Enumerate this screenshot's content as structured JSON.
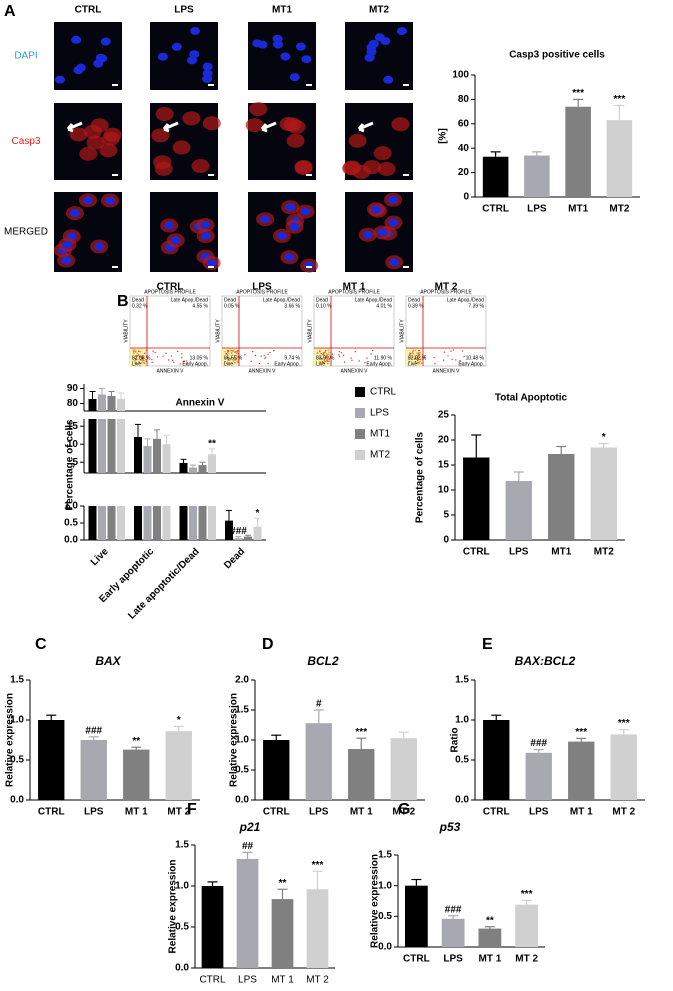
{
  "panels": [
    "A",
    "B",
    "C",
    "D",
    "E",
    "F",
    "G"
  ],
  "microscopy": {
    "columns": [
      "CTRL",
      "LPS",
      "MT1",
      "MT2"
    ],
    "rows": [
      "DAPI",
      "Casp3",
      "MERGED"
    ]
  },
  "flow_plots": [
    {
      "title": "CTRL",
      "subtitle": "APOPTOSIS PROFILE",
      "xlabel": "ANNEXIN V",
      "ylabel": "VIABILITY",
      "labels": [
        [
          "Dead",
          "0.32 %"
        ],
        [
          "Late Apop./Dead",
          "4.55 %"
        ],
        [
          "Live",
          "82.08 %"
        ],
        [
          "Early Apop.",
          "13.05 %"
        ]
      ]
    },
    {
      "title": "LPS",
      "subtitle": "APOPTOSIS PROFILE",
      "xlabel": "ANNEXIN V",
      "ylabel": "VIABILITY",
      "labels": [
        [
          "Dead",
          "0.05 %"
        ],
        [
          "Late Apop./Dead",
          "3.66 %"
        ],
        [
          "Live",
          "86.55 %"
        ],
        [
          "Early Apop.",
          "9.74 %"
        ]
      ]
    },
    {
      "title": "MT 1",
      "subtitle": "APOPTOSIS PROFILE",
      "xlabel": "ANNEXIN V",
      "ylabel": "VIABILITY",
      "labels": [
        [
          "Dead",
          "0.10 %"
        ],
        [
          "Late Apop./Dead",
          "4.01 %"
        ],
        [
          "Live",
          "83.99 %"
        ],
        [
          "Early Apop.",
          "11.90 %"
        ]
      ]
    },
    {
      "title": "MT 2",
      "subtitle": "APOPTOSIS PROFILE",
      "xlabel": "ANNEXIN V",
      "ylabel": "VIABILITY",
      "labels": [
        [
          "Dead",
          "0.39 %"
        ],
        [
          "Late Apop./Dead",
          "7.39 %"
        ],
        [
          "Live",
          "82.02 %"
        ],
        [
          "Early Apop.",
          "10.48 %"
        ]
      ]
    }
  ],
  "chart_data": [
    {
      "type": "bar",
      "title": "Casp3 positive cells",
      "ylabel": "[%]",
      "categories": [
        "CTRL",
        "LPS",
        "MT1",
        "MT2"
      ],
      "values": [
        33,
        34,
        74,
        63
      ],
      "errors": [
        4,
        3,
        6,
        12
      ],
      "annotations": [
        null,
        null,
        "***",
        "***"
      ],
      "colors": [
        "#000000",
        "#a8a8b0",
        "#808080",
        "#d0d0d0"
      ],
      "ylim": [
        0,
        100
      ],
      "yticks": [
        0,
        20,
        40,
        60,
        80,
        100
      ]
    },
    {
      "type": "grouped-bar-broken",
      "title": "Annexin V",
      "ylabel": "Percentage of cells",
      "categories": [
        "Live",
        "Early apoptotic",
        "Late apoptotic/Dead",
        "Dead"
      ],
      "series": [
        {
          "name": "CTRL",
          "color": "#000000",
          "values": [
            83,
            12,
            4.8,
            0.57
          ],
          "errors": [
            5,
            3.5,
            1,
            0.3
          ]
        },
        {
          "name": "LPS",
          "color": "#a8a8b0",
          "values": [
            86,
            9.5,
            3.5,
            0.05
          ],
          "errors": [
            4,
            2,
            0.7,
            0.05
          ],
          "annotations": [
            null,
            null,
            null,
            "###"
          ]
        },
        {
          "name": "MT1",
          "color": "#808080",
          "values": [
            85,
            11.5,
            4.2,
            0.1
          ],
          "errors": [
            3,
            2.5,
            0.8,
            0.04
          ]
        },
        {
          "name": "MT2",
          "color": "#d0d0d0",
          "values": [
            83,
            10,
            7.2,
            0.39
          ],
          "errors": [
            4,
            2.5,
            1.5,
            0.25
          ],
          "annotations": [
            null,
            null,
            "**",
            "*"
          ]
        }
      ],
      "segments": [
        {
          "ylim": [
            0,
            1
          ],
          "yticks": [
            {
              "value": 0,
              "label": "0.0"
            },
            0.5,
            {
              "value": 1,
              "label": "1.0"
            }
          ]
        },
        {
          "ylim": [
            2,
            17
          ],
          "yticks": [
            5,
            10,
            15
          ]
        },
        {
          "ylim": [
            75,
            93
          ],
          "yticks": [
            80,
            90
          ]
        }
      ]
    },
    {
      "type": "bar",
      "title": "Total Apoptotic",
      "ylabel": "Percentage of cells",
      "categories": [
        "CTRL",
        "LPS",
        "MT1",
        "MT2"
      ],
      "values": [
        16.5,
        11.8,
        17.2,
        18.5
      ],
      "errors": [
        4.5,
        1.8,
        1.5,
        0.8
      ],
      "annotations": [
        null,
        null,
        null,
        "*"
      ],
      "colors": [
        "#000000",
        "#a8a8b0",
        "#808080",
        "#d0d0d0"
      ],
      "ylim": [
        0,
        25
      ],
      "yticks": [
        0,
        5,
        10,
        15,
        20,
        25
      ]
    },
    {
      "type": "bar",
      "title": "BAX",
      "ylabel": "Relative expression",
      "categories": [
        "CTRL",
        "LPS",
        "MT 1",
        "MT 2"
      ],
      "values": [
        1.0,
        0.75,
        0.63,
        0.86
      ],
      "errors": [
        0.06,
        0.04,
        0.03,
        0.06
      ],
      "annotations": [
        null,
        "###",
        "**",
        "*"
      ],
      "colors": [
        "#000000",
        "#a8a8b0",
        "#808080",
        "#d0d0d0"
      ],
      "ylim": [
        0,
        1.5
      ],
      "yticks": [
        {
          "value": 0,
          "label": "0.0"
        },
        0.5,
        {
          "value": 1,
          "label": "1.0"
        },
        1.5
      ]
    },
    {
      "type": "bar",
      "title": "BCL2",
      "ylabel": "Relative expression",
      "categories": [
        "CTRL",
        "LPS",
        "MT 1",
        "MT 2"
      ],
      "values": [
        1.0,
        1.28,
        0.85,
        1.03
      ],
      "errors": [
        0.08,
        0.22,
        0.18,
        0.1
      ],
      "annotations": [
        null,
        "#",
        "***",
        null
      ],
      "colors": [
        "#000000",
        "#a8a8b0",
        "#808080",
        "#d0d0d0"
      ],
      "ylim": [
        0,
        2
      ],
      "yticks": [
        {
          "value": 0,
          "label": "0.0"
        },
        0.5,
        {
          "value": 1,
          "label": "1.0"
        },
        1.5,
        {
          "value": 2,
          "label": "2.0"
        }
      ]
    },
    {
      "type": "bar",
      "title": "BAX:BCL2",
      "ylabel": "Ratio",
      "categories": [
        "CTRL",
        "LPS",
        "MT 1",
        "MT 2"
      ],
      "values": [
        1.0,
        0.59,
        0.73,
        0.82
      ],
      "errors": [
        0.06,
        0.04,
        0.04,
        0.06
      ],
      "annotations": [
        null,
        "###",
        "***",
        "***"
      ],
      "colors": [
        "#000000",
        "#a8a8b0",
        "#808080",
        "#d0d0d0"
      ],
      "ylim": [
        0,
        1.5
      ],
      "yticks": [
        {
          "value": 0,
          "label": "0.0"
        },
        0.5,
        {
          "value": 1,
          "label": "1.0"
        },
        1.5
      ]
    },
    {
      "type": "bar",
      "title": "p21",
      "ylabel": "Relative expression",
      "categories": [
        "CTRL",
        "LPS",
        "MT 1",
        "MT 2"
      ],
      "values": [
        1.0,
        1.33,
        0.84,
        0.96
      ],
      "errors": [
        0.05,
        0.08,
        0.12,
        0.22
      ],
      "annotations": [
        null,
        "##",
        "**",
        "***"
      ],
      "colors": [
        "#000000",
        "#a8a8b0",
        "#808080",
        "#d0d0d0"
      ],
      "ylim": [
        0,
        1.5
      ],
      "yticks": [
        {
          "value": 0,
          "label": "0.0"
        },
        0.5,
        {
          "value": 1,
          "label": "1.0"
        },
        1.5
      ]
    },
    {
      "type": "bar",
      "title": "p53",
      "ylabel": "Relative expression",
      "categories": [
        "CTRL",
        "LPS",
        "MT 1",
        "MT 2"
      ],
      "values": [
        1.0,
        0.46,
        0.3,
        0.69
      ],
      "errors": [
        0.1,
        0.05,
        0.03,
        0.07
      ],
      "annotations": [
        null,
        "###",
        "**",
        "***"
      ],
      "colors": [
        "#000000",
        "#a8a8b0",
        "#808080",
        "#d0d0d0"
      ],
      "ylim": [
        0,
        1.5
      ],
      "yticks": [
        {
          "value": 0,
          "label": "0.0"
        },
        0.5,
        {
          "value": 1,
          "label": "1.0"
        },
        1.5
      ]
    }
  ]
}
